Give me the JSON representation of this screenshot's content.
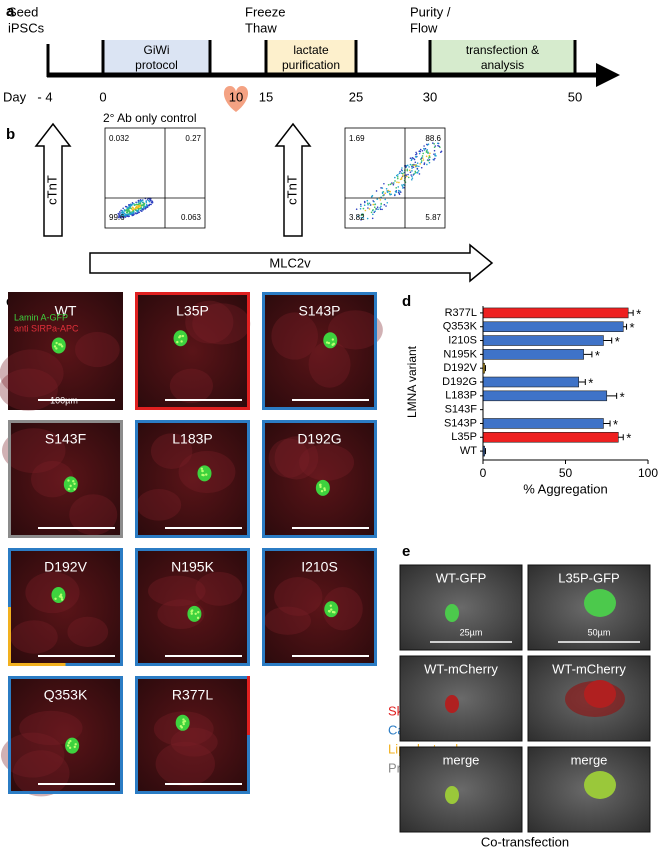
{
  "panel_labels": [
    "a",
    "b",
    "c",
    "d",
    "e"
  ],
  "timeline": {
    "day_label": "Day",
    "days": [
      "- 4",
      "0",
      "10",
      "15",
      "25",
      "30",
      "50"
    ],
    "top_labels": [
      {
        "lines": [
          "Seed",
          "iPSCs"
        ]
      },
      {
        "lines": [
          "Freeze",
          "Thaw"
        ]
      },
      {
        "lines": [
          "Purity /",
          "Flow"
        ]
      }
    ],
    "stages": [
      {
        "lines": [
          "GiWi",
          "protocol"
        ],
        "color": "#dbe4f3"
      },
      {
        "lines": [
          "lactate",
          "purification"
        ],
        "color": "#fdf0cc"
      },
      {
        "lines": [
          "transfection &",
          "analysis"
        ],
        "color": "#d6ebcd"
      }
    ]
  },
  "flow": {
    "control_title": "2° Ab only control",
    "y_marker": "cTnT",
    "x_marker": "MLC2v",
    "plots": [
      {
        "quadrants": [
          0.032,
          0.27,
          99.6,
          0.063
        ]
      },
      {
        "quadrants": [
          1.69,
          88.6,
          3.82,
          5.87
        ]
      }
    ]
  },
  "microscopy": {
    "stains": [
      {
        "text": "Lamin A-GFP",
        "color": "#3ecf3e"
      },
      {
        "text": "anti SIRPa-APC",
        "color": "#e0303a"
      }
    ],
    "scale": "100µm",
    "panels": [
      {
        "name": "WT",
        "border": []
      },
      {
        "name": "L35P",
        "border": [
          "#e02020"
        ]
      },
      {
        "name": "S143P",
        "border": [
          "#2b7cc4"
        ]
      },
      {
        "name": "S143F",
        "border": [
          "#8c8c8c"
        ]
      },
      {
        "name": "L183P",
        "border": [
          "#2b7cc4"
        ]
      },
      {
        "name": "D192G",
        "border": [
          "#2b7cc4"
        ]
      },
      {
        "name": "D192V",
        "border": [
          "#2b7cc4",
          "#f2b01e"
        ]
      },
      {
        "name": "N195K",
        "border": [
          "#2b7cc4"
        ]
      },
      {
        "name": "I210S",
        "border": [
          "#2b7cc4"
        ]
      },
      {
        "name": "Q353K",
        "border": [
          "#2b7cc4"
        ]
      },
      {
        "name": "R377L",
        "border": [
          "#2b7cc4",
          "#e02020"
        ]
      }
    ],
    "legend": [
      {
        "name": "Skeletal",
        "color": "#e02020"
      },
      {
        "name": "Cardiac",
        "color": "#2b7cc4"
      },
      {
        "name": "Lipodystrophy",
        "color": "#f2b01e"
      },
      {
        "name": "Premature aging",
        "color": "#8c8c8c"
      }
    ]
  },
  "chart_data": {
    "type": "hbar",
    "categories": [
      "R377L",
      "Q353K",
      "I210S",
      "N195K",
      "D192V",
      "D192G",
      "L183P",
      "S143F",
      "S143P",
      "L35P",
      "WT"
    ],
    "values": [
      88,
      85,
      73,
      61,
      1,
      58,
      75,
      0,
      73,
      82,
      1
    ],
    "errors": [
      3,
      2,
      5,
      5,
      0.5,
      4,
      6,
      0,
      4,
      3,
      0.5
    ],
    "colors": [
      "#ee2020",
      "#3f73c8",
      "#3f73c8",
      "#3f73c8",
      "#f2c01e",
      "#3f73c8",
      "#3f73c8",
      "#8c8c8c",
      "#3f73c8",
      "#ee2020",
      "#3f73c8"
    ],
    "significance": [
      "*",
      "*",
      "*",
      "*",
      null,
      "*",
      "*",
      null,
      "*",
      "*",
      null
    ],
    "xlim": [
      0,
      100
    ],
    "xticks": [
      0,
      50,
      100
    ],
    "xlabel": "% Aggregation",
    "ylabel": "LMNA variant"
  },
  "cotransfection": {
    "rows": [
      [
        "WT-GFP",
        "L35P-GFP"
      ],
      [
        "WT-mCherry",
        "WT-mCherry"
      ],
      [
        "merge",
        "merge"
      ]
    ],
    "scales": [
      "25µm",
      "50µm"
    ],
    "footer": "Co-transfection"
  }
}
